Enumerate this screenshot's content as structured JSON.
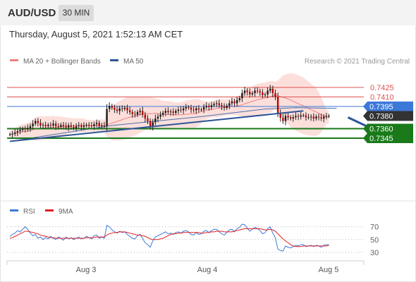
{
  "header": {
    "symbol": "AUD/USD",
    "timeframe": "30 MIN",
    "datetime": "Thursday, August 5, 2021 1:52:13 AM CET"
  },
  "chart_data": [
    {
      "type": "candlestick",
      "legend": [
        {
          "name": "MA 20 + Bollinger Bands",
          "color": "#f08080"
        },
        {
          "name": "MA 50",
          "color": "#2f5597"
        }
      ],
      "legend_placement": "top-left",
      "credit": "Research © 2021 Trading Central",
      "x_ticks": [
        "Aug 3",
        "Aug 4",
        "Aug 5"
      ],
      "levels": [
        {
          "label": "0.7425",
          "value": 0.7425,
          "kind": "resistance",
          "color": "#e05050"
        },
        {
          "label": "0.7410",
          "value": 0.741,
          "kind": "resistance",
          "color": "#e05050"
        },
        {
          "label": "0.7395",
          "value": 0.7395,
          "kind": "pivot",
          "color": "#3c78d8"
        },
        {
          "label": "0.7380",
          "value": 0.738,
          "kind": "last-price",
          "color": "#333333"
        },
        {
          "label": "0.7360",
          "value": 0.736,
          "kind": "support",
          "color": "#1a7a1a"
        },
        {
          "label": "0.7345",
          "value": 0.7345,
          "kind": "support",
          "color": "#1a7a1a"
        }
      ],
      "price_path": [
        0.7351,
        0.7352,
        0.7354,
        0.7356,
        0.7358,
        0.736,
        0.7359,
        0.7361,
        0.7364,
        0.7368,
        0.7372,
        0.7369,
        0.7365,
        0.7366,
        0.7364,
        0.7366,
        0.7365,
        0.7368,
        0.7364,
        0.7363,
        0.7366,
        0.7364,
        0.7362,
        0.7365,
        0.7363,
        0.7361,
        0.7364,
        0.7365,
        0.7363,
        0.7365,
        0.7366,
        0.7365,
        0.7364,
        0.7367,
        0.7369,
        0.7364,
        0.7365,
        0.7364,
        0.7391,
        0.7396,
        0.7393,
        0.739,
        0.7388,
        0.7392,
        0.7391,
        0.7393,
        0.7389,
        0.7386,
        0.7383,
        0.7382,
        0.7386,
        0.7388,
        0.7382,
        0.7376,
        0.7372,
        0.7363,
        0.737,
        0.7376,
        0.7379,
        0.7382,
        0.7385,
        0.7388,
        0.7386,
        0.7387,
        0.7385,
        0.7388,
        0.739,
        0.7389,
        0.7392,
        0.7394,
        0.7393,
        0.739,
        0.7389,
        0.7392,
        0.739,
        0.739,
        0.7394,
        0.7396,
        0.7394,
        0.7397,
        0.7399,
        0.74,
        0.7397,
        0.7395,
        0.7393,
        0.7396,
        0.74,
        0.7403,
        0.74,
        0.7405,
        0.7408,
        0.7416,
        0.742,
        0.7418,
        0.7414,
        0.7416,
        0.742,
        0.7419,
        0.7417,
        0.7413,
        0.7414,
        0.742,
        0.7423,
        0.7416,
        0.741,
        0.7385,
        0.7377,
        0.7372,
        0.738,
        0.7378,
        0.7376,
        0.7378,
        0.738,
        0.7379,
        0.7381,
        0.7381,
        0.7378,
        0.7378,
        0.7379,
        0.7376,
        0.7379,
        0.7378,
        0.7376,
        0.7379,
        0.738,
        0.738
      ],
      "ma50": [
        [
          0,
          0.734
        ],
        [
          40,
          0.7365
        ],
        [
          75,
          0.7379
        ],
        [
          100,
          0.7391
        ],
        [
          112,
          0.7393
        ],
        [
          128,
          0.7392
        ]
      ],
      "trendline": [
        [
          0,
          0.734
        ],
        [
          115,
          0.7388
        ]
      ],
      "forecast_arrow": [
        [
          117,
          0.738
        ],
        [
          125,
          0.7346
        ]
      ]
    },
    {
      "type": "line",
      "legend": [
        {
          "name": "RSI",
          "color": "#3c78d8"
        },
        {
          "name": "9MA",
          "color": "#e02020"
        }
      ],
      "y_ticks": [
        70,
        50,
        30
      ],
      "ylim": [
        20,
        80
      ],
      "series": [
        {
          "name": "RSI",
          "values": [
            55,
            58,
            60,
            64,
            62,
            66,
            70,
            66,
            60,
            56,
            58,
            52,
            54,
            50,
            53,
            51,
            55,
            52,
            50,
            54,
            52,
            49,
            54,
            51,
            53,
            50,
            52,
            54,
            51,
            52,
            55,
            53,
            51,
            56,
            57,
            52,
            54,
            52,
            72,
            70,
            65,
            62,
            60,
            63,
            61,
            62,
            58,
            55,
            52,
            51,
            56,
            58,
            52,
            45,
            42,
            38,
            48,
            54,
            56,
            58,
            60,
            62,
            59,
            60,
            58,
            61,
            62,
            60,
            63,
            64,
            62,
            58,
            57,
            61,
            58,
            59,
            63,
            64,
            61,
            64,
            66,
            66,
            62,
            59,
            57,
            61,
            65,
            66,
            62,
            67,
            69,
            74,
            73,
            68,
            63,
            66,
            69,
            67,
            64,
            59,
            61,
            67,
            70,
            60,
            53,
            35,
            33,
            32,
            40,
            38,
            37,
            39,
            41,
            40,
            42,
            42,
            39,
            40,
            41,
            39,
            41,
            40,
            38,
            41,
            42,
            42
          ]
        },
        {
          "name": "9MA",
          "values": [
            52,
            53,
            55,
            57,
            59,
            61,
            63,
            63,
            62,
            61,
            60,
            59,
            57,
            56,
            55,
            54,
            53,
            53,
            52,
            52,
            52,
            52,
            52,
            52,
            52,
            52,
            52,
            52,
            52,
            52,
            53,
            53,
            53,
            53,
            54,
            54,
            54,
            54,
            57,
            59,
            60,
            61,
            61,
            62,
            62,
            62,
            61,
            60,
            59,
            58,
            57,
            57,
            56,
            55,
            53,
            51,
            50,
            50,
            50,
            51,
            52,
            54,
            56,
            58,
            59,
            59,
            60,
            60,
            61,
            61,
            61,
            61,
            61,
            61,
            61,
            60,
            60,
            61,
            61,
            62,
            62,
            63,
            63,
            63,
            62,
            62,
            62,
            62,
            63,
            64,
            65,
            66,
            67,
            67,
            67,
            67,
            67,
            67,
            67,
            66,
            65,
            65,
            66,
            65,
            63,
            59,
            55,
            51,
            48,
            45,
            42,
            40,
            39,
            39,
            39,
            40,
            40,
            40,
            40,
            40,
            40,
            40,
            40,
            40,
            40,
            41
          ]
        }
      ]
    }
  ]
}
